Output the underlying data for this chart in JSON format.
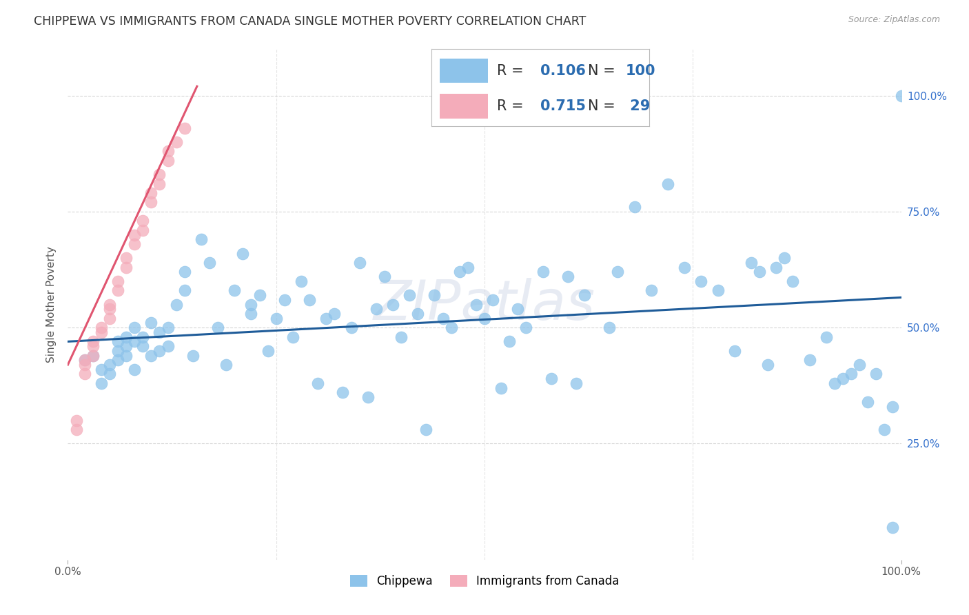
{
  "title": "CHIPPEWA VS IMMIGRANTS FROM CANADA SINGLE MOTHER POVERTY CORRELATION CHART",
  "source": "Source: ZipAtlas.com",
  "ylabel": "Single Mother Poverty",
  "R_chippewa": 0.106,
  "N_chippewa": 100,
  "R_canada": 0.715,
  "N_canada": 29,
  "color_chippewa": "#8DC3EA",
  "color_canada": "#F4ACBA",
  "color_blue_line": "#1F5C99",
  "color_pink_line": "#E05570",
  "color_title": "#333333",
  "color_source": "#999999",
  "color_legend_text": "#444444",
  "color_legend_values": "#2B6CB0",
  "background_color": "#FFFFFF",
  "grid_color": "#CCCCCC",
  "watermark": "ZIPatlas",
  "xlim": [
    0.0,
    1.0
  ],
  "ylim": [
    0.0,
    1.1
  ],
  "blue_line_y_at_x0": 0.47,
  "blue_line_y_at_x1": 0.565,
  "pink_line_x0": 0.0,
  "pink_line_x1": 0.155,
  "pink_line_y_at_x0": 0.42,
  "pink_line_y_at_x1": 1.02,
  "chippewa_x": [
    0.02,
    0.03,
    0.04,
    0.04,
    0.05,
    0.05,
    0.06,
    0.06,
    0.06,
    0.07,
    0.07,
    0.07,
    0.08,
    0.08,
    0.08,
    0.09,
    0.09,
    0.1,
    0.1,
    0.11,
    0.11,
    0.12,
    0.12,
    0.13,
    0.14,
    0.14,
    0.15,
    0.16,
    0.17,
    0.18,
    0.19,
    0.2,
    0.21,
    0.22,
    0.22,
    0.23,
    0.24,
    0.25,
    0.26,
    0.27,
    0.28,
    0.29,
    0.3,
    0.31,
    0.32,
    0.33,
    0.34,
    0.35,
    0.36,
    0.37,
    0.38,
    0.39,
    0.4,
    0.41,
    0.42,
    0.43,
    0.44,
    0.45,
    0.46,
    0.47,
    0.48,
    0.49,
    0.5,
    0.51,
    0.52,
    0.53,
    0.54,
    0.55,
    0.57,
    0.58,
    0.6,
    0.61,
    0.62,
    0.65,
    0.66,
    0.68,
    0.7,
    0.72,
    0.74,
    0.76,
    0.78,
    0.8,
    0.82,
    0.83,
    0.84,
    0.85,
    0.86,
    0.87,
    0.89,
    0.91,
    0.92,
    0.93,
    0.94,
    0.95,
    0.96,
    0.97,
    0.98,
    0.99,
    0.99,
    1.0
  ],
  "chippewa_y": [
    0.43,
    0.44,
    0.38,
    0.41,
    0.4,
    0.42,
    0.47,
    0.43,
    0.45,
    0.44,
    0.46,
    0.48,
    0.41,
    0.5,
    0.47,
    0.46,
    0.48,
    0.44,
    0.51,
    0.45,
    0.49,
    0.5,
    0.46,
    0.55,
    0.62,
    0.58,
    0.44,
    0.69,
    0.64,
    0.5,
    0.42,
    0.58,
    0.66,
    0.55,
    0.53,
    0.57,
    0.45,
    0.52,
    0.56,
    0.48,
    0.6,
    0.56,
    0.38,
    0.52,
    0.53,
    0.36,
    0.5,
    0.64,
    0.35,
    0.54,
    0.61,
    0.55,
    0.48,
    0.57,
    0.53,
    0.28,
    0.57,
    0.52,
    0.5,
    0.62,
    0.63,
    0.55,
    0.52,
    0.56,
    0.37,
    0.47,
    0.54,
    0.5,
    0.62,
    0.39,
    0.61,
    0.38,
    0.57,
    0.5,
    0.62,
    0.76,
    0.58,
    0.81,
    0.63,
    0.6,
    0.58,
    0.45,
    0.64,
    0.62,
    0.42,
    0.63,
    0.65,
    0.6,
    0.43,
    0.48,
    0.38,
    0.39,
    0.4,
    0.42,
    0.34,
    0.4,
    0.28,
    0.33,
    0.07,
    1.0
  ],
  "canada_x": [
    0.01,
    0.01,
    0.02,
    0.02,
    0.02,
    0.03,
    0.03,
    0.03,
    0.04,
    0.04,
    0.05,
    0.05,
    0.05,
    0.06,
    0.06,
    0.07,
    0.07,
    0.08,
    0.08,
    0.09,
    0.09,
    0.1,
    0.1,
    0.11,
    0.11,
    0.12,
    0.12,
    0.13,
    0.14
  ],
  "canada_y": [
    0.3,
    0.28,
    0.43,
    0.42,
    0.4,
    0.47,
    0.46,
    0.44,
    0.5,
    0.49,
    0.55,
    0.54,
    0.52,
    0.6,
    0.58,
    0.65,
    0.63,
    0.7,
    0.68,
    0.73,
    0.71,
    0.79,
    0.77,
    0.83,
    0.81,
    0.88,
    0.86,
    0.9,
    0.93
  ]
}
